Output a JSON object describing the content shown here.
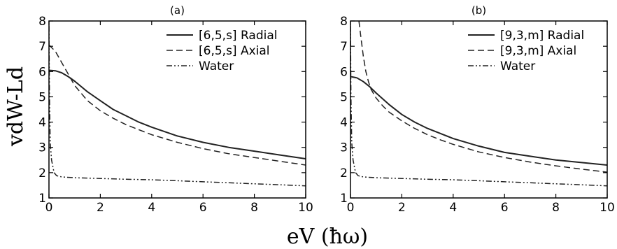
{
  "figure": {
    "ylabel": "vdW-Ld",
    "xlabel": "eV (ħω)"
  },
  "chart_data": [
    {
      "type": "line",
      "title": "(a)",
      "xlim": [
        0,
        10
      ],
      "ylim": [
        1,
        8
      ],
      "xticks": [
        0,
        2,
        4,
        6,
        8,
        10
      ],
      "yticks": [
        1,
        2,
        3,
        4,
        5,
        6,
        7,
        8
      ],
      "legend_position": "top-right",
      "grid": false,
      "series": [
        {
          "name": "[6,5,s] Radial",
          "style": "solid",
          "x": [
            0,
            0.25,
            0.5,
            0.75,
            1,
            1.5,
            2,
            2.5,
            3,
            3.5,
            4,
            5,
            6,
            7,
            8,
            9,
            10
          ],
          "y": [
            6.05,
            6.03,
            5.95,
            5.8,
            5.62,
            5.2,
            4.85,
            4.5,
            4.25,
            4.0,
            3.8,
            3.45,
            3.2,
            3.0,
            2.85,
            2.7,
            2.55
          ]
        },
        {
          "name": "[6,5,s] Axial",
          "style": "dashed",
          "x": [
            0,
            0.25,
            0.5,
            0.75,
            1,
            1.5,
            2,
            2.5,
            3,
            3.5,
            4,
            5,
            6,
            7,
            8,
            9,
            10
          ],
          "y": [
            7.05,
            6.8,
            6.35,
            5.9,
            5.45,
            4.85,
            4.45,
            4.15,
            3.9,
            3.7,
            3.5,
            3.2,
            2.95,
            2.75,
            2.6,
            2.45,
            2.3
          ]
        },
        {
          "name": "Water",
          "style": "dash-dot-dot",
          "x": [
            0,
            0.02,
            0.05,
            0.1,
            0.2,
            0.3,
            0.5,
            1,
            2,
            3,
            4,
            5,
            6,
            7,
            8,
            9,
            10
          ],
          "y": [
            7.8,
            5.0,
            3.2,
            2.5,
            2.0,
            1.88,
            1.83,
            1.8,
            1.77,
            1.74,
            1.72,
            1.68,
            1.64,
            1.6,
            1.56,
            1.52,
            1.48
          ]
        }
      ]
    },
    {
      "type": "line",
      "title": "(b)",
      "xlim": [
        0,
        10
      ],
      "ylim": [
        1,
        8
      ],
      "xticks": [
        0,
        2,
        4,
        6,
        8,
        10
      ],
      "yticks": [
        1,
        2,
        3,
        4,
        5,
        6,
        7,
        8
      ],
      "legend_position": "top-right",
      "grid": false,
      "series": [
        {
          "name": "[9,3,m] Radial",
          "style": "solid",
          "x": [
            0,
            0.25,
            0.5,
            0.75,
            1,
            1.5,
            2,
            2.5,
            3,
            3.5,
            4,
            5,
            6,
            7,
            8,
            9,
            10
          ],
          "y": [
            5.8,
            5.75,
            5.6,
            5.4,
            5.15,
            4.7,
            4.3,
            4.0,
            3.75,
            3.55,
            3.35,
            3.05,
            2.8,
            2.65,
            2.5,
            2.4,
            2.3
          ]
        },
        {
          "name": "[9,3,m] Axial",
          "style": "dashed",
          "x": [
            0.33,
            0.4,
            0.5,
            0.6,
            0.7,
            0.8,
            1,
            1.25,
            1.5,
            2,
            2.5,
            3,
            3.5,
            4,
            5,
            6,
            7,
            8,
            9,
            10
          ],
          "y": [
            8.0,
            7.4,
            6.6,
            6.0,
            5.6,
            5.3,
            4.95,
            4.65,
            4.4,
            4.05,
            3.75,
            3.5,
            3.3,
            3.12,
            2.82,
            2.6,
            2.42,
            2.27,
            2.14,
            2.02
          ]
        },
        {
          "name": "Water",
          "style": "dash-dot-dot",
          "x": [
            0,
            0.02,
            0.05,
            0.1,
            0.2,
            0.3,
            0.5,
            1,
            2,
            3,
            4,
            5,
            6,
            7,
            8,
            9,
            10
          ],
          "y": [
            7.8,
            5.0,
            3.2,
            2.5,
            2.0,
            1.88,
            1.83,
            1.8,
            1.77,
            1.74,
            1.72,
            1.68,
            1.64,
            1.6,
            1.56,
            1.52,
            1.48
          ]
        }
      ]
    }
  ]
}
